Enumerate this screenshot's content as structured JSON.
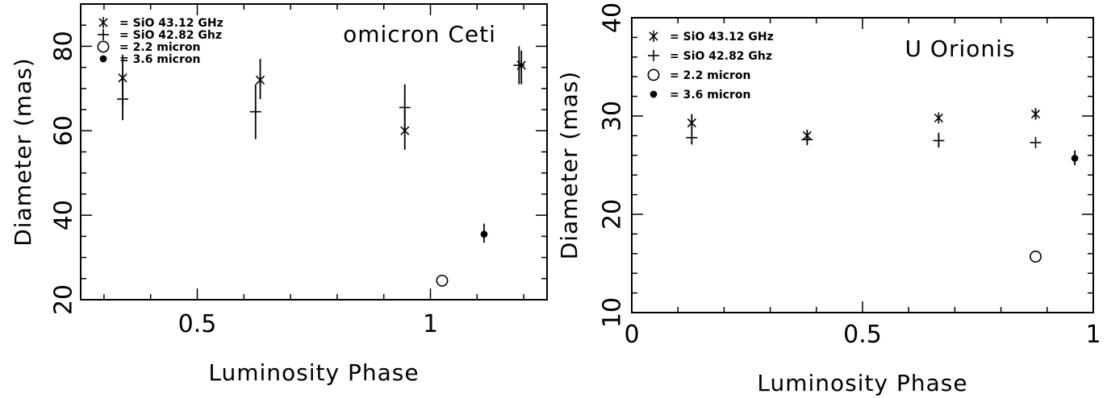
{
  "chart_data": [
    {
      "type": "scatter",
      "title": "omicron Ceti",
      "xlabel": "Luminosity Phase",
      "ylabel": "Diameter (mas)",
      "xlim": [
        0.25,
        1.25
      ],
      "ylim": [
        20,
        90
      ],
      "xticks": {
        "major": [
          0.5,
          1.0
        ],
        "major_labels": [
          "0.5",
          "1"
        ],
        "minor_step": 0.1
      },
      "yticks": {
        "major": [
          20,
          40,
          60,
          80
        ],
        "major_labels": [
          "20",
          "40",
          "60",
          "80"
        ],
        "minor_step": 5
      },
      "legend_position": "top-left",
      "series": [
        {
          "name": "= SiO 43.12 GHz",
          "marker": "asterisk",
          "points": [
            {
              "x": 0.34,
              "y": 72.5,
              "err": [
                66,
                78
              ]
            },
            {
              "x": 0.635,
              "y": 72.0,
              "err": [
                67.5,
                77
              ]
            },
            {
              "x": 0.945,
              "y": 60.0,
              "err": [
                55.5,
                65
              ]
            },
            {
              "x": 1.195,
              "y": 75.5,
              "err": [
                71,
                79
              ]
            }
          ]
        },
        {
          "name": "= SiO 42.82 Ghz",
          "marker": "plus",
          "points": [
            {
              "x": 0.34,
              "y": 67.5,
              "err": [
                62.5,
                72.5
              ]
            },
            {
              "x": 0.625,
              "y": 64.5,
              "err": [
                58,
                71
              ]
            },
            {
              "x": 0.945,
              "y": 65.5,
              "err": [
                60,
                71
              ]
            },
            {
              "x": 1.19,
              "y": 75.5,
              "err": [
                71,
                80
              ]
            }
          ]
        },
        {
          "name": "= 2.2 micron",
          "marker": "open-circle",
          "points": [
            {
              "x": 1.025,
              "y": 24.5
            }
          ]
        },
        {
          "name": "= 3.6 micron",
          "marker": "filled-circle",
          "points": [
            {
              "x": 1.115,
              "y": 35.5,
              "err": [
                33.5,
                38
              ]
            }
          ]
        }
      ]
    },
    {
      "type": "scatter",
      "title": "U Orionis",
      "xlabel": "Luminosity Phase",
      "ylabel": "Diameter (mas)",
      "xlim": [
        0,
        1
      ],
      "ylim": [
        10,
        40
      ],
      "xticks": {
        "major": [
          0,
          0.5,
          1
        ],
        "major_labels": [
          "0",
          "0.5",
          "1"
        ],
        "minor_step": 0.1
      },
      "yticks": {
        "major": [
          10,
          20,
          30,
          40
        ],
        "major_labels": [
          "10",
          "20",
          "30",
          "40"
        ],
        "minor_step": 2
      },
      "legend_position": "top-left",
      "series": [
        {
          "name": "= SiO 43.12 GHz",
          "marker": "asterisk",
          "points": [
            {
              "x": 0.13,
              "y": 29.3,
              "err": [
                28.6,
                30.2
              ]
            },
            {
              "x": 0.38,
              "y": 28.0,
              "err": [
                27.5,
                28.6
              ]
            },
            {
              "x": 0.665,
              "y": 29.8
            },
            {
              "x": 0.875,
              "y": 30.2,
              "err": [
                29.7,
                30.8
              ]
            }
          ]
        },
        {
          "name": "= SiO 42.82 Ghz",
          "marker": "plus",
          "points": [
            {
              "x": 0.13,
              "y": 27.8,
              "err": [
                27.1,
                28.6
              ]
            },
            {
              "x": 0.38,
              "y": 27.6,
              "err": [
                27.1,
                28.1
              ]
            },
            {
              "x": 0.665,
              "y": 27.5,
              "err": [
                26.8,
                28.3
              ]
            },
            {
              "x": 0.875,
              "y": 27.3
            }
          ]
        },
        {
          "name": "= 2.2 micron",
          "marker": "open-circle",
          "points": [
            {
              "x": 0.875,
              "y": 15.7
            }
          ]
        },
        {
          "name": "= 3.6 micron",
          "marker": "filled-circle",
          "points": [
            {
              "x": 0.96,
              "y": 25.7,
              "err": [
                25.0,
                26.5
              ]
            }
          ]
        }
      ]
    }
  ]
}
